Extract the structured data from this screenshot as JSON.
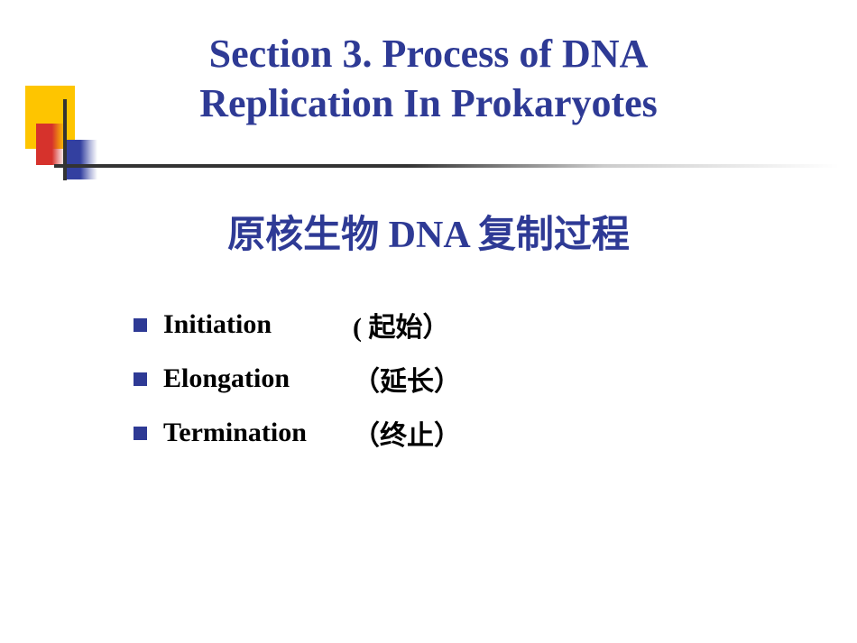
{
  "colors": {
    "title": "#2e3a95",
    "bullet": "#2e3a95",
    "yellow": "#fec500",
    "red": "#d6322c",
    "blue": "#3340a0",
    "line": "#333333",
    "background": "#ffffff",
    "body_text": "#000000"
  },
  "typography": {
    "title_fontsize": 44,
    "subtitle_fontsize": 42,
    "item_fontsize": 30,
    "font_family": "Times New Roman / SimSun",
    "font_weight": "bold"
  },
  "title": {
    "line1": "Section 3. Process of DNA",
    "line2": "Replication In Prokaryotes"
  },
  "subtitle": "原核生物 DNA 复制过程",
  "items": [
    {
      "term": "Initiation",
      "translation": "( 起始）"
    },
    {
      "term": "Elongation",
      "translation": "（延长）"
    },
    {
      "term": "Termination",
      "translation": "（终止）"
    }
  ]
}
